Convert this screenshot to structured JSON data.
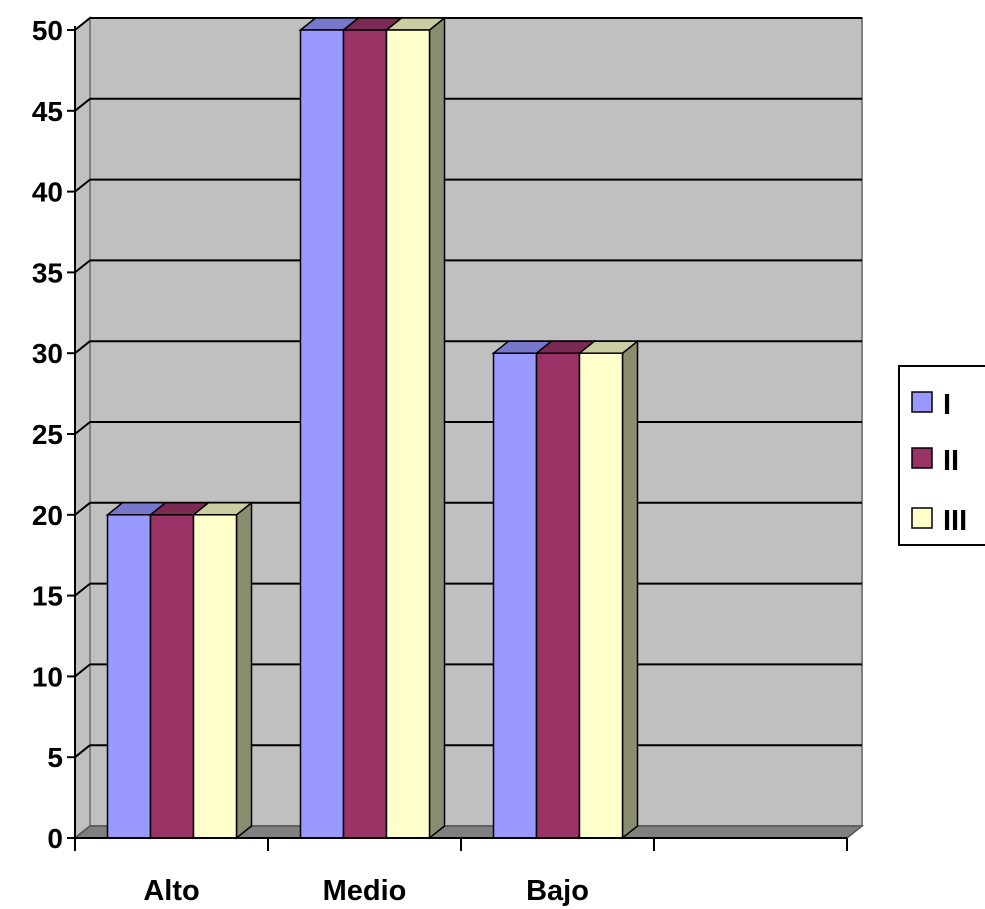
{
  "chart_data": {
    "type": "bar",
    "title": "",
    "xlabel": "",
    "ylabel": "",
    "categories": [
      "Alto",
      "Medio",
      "Bajo",
      ""
    ],
    "series": [
      {
        "name": "I",
        "values": [
          20,
          50,
          30,
          null
        ]
      },
      {
        "name": "II",
        "values": [
          20,
          50,
          30,
          null
        ]
      },
      {
        "name": "III",
        "values": [
          20,
          50,
          30,
          null
        ]
      }
    ],
    "ylim": [
      0,
      50
    ],
    "yticks": [
      "0",
      "5",
      "10",
      "15",
      "20",
      "25",
      "30",
      "35",
      "40",
      "45",
      "50"
    ],
    "grid": true,
    "legend_position": "right",
    "three_d": true
  },
  "colors": {
    "plot_background": "#c0c0c0",
    "floor": "#808080",
    "series": [
      "#9999ff",
      "#993366",
      "#ffffcc"
    ],
    "series_top": [
      "#7777cc",
      "#7a2952",
      "#cccca3"
    ],
    "series_side": [
      "#7b7b8c",
      "#5a2a3c",
      "#8c8c70"
    ]
  }
}
